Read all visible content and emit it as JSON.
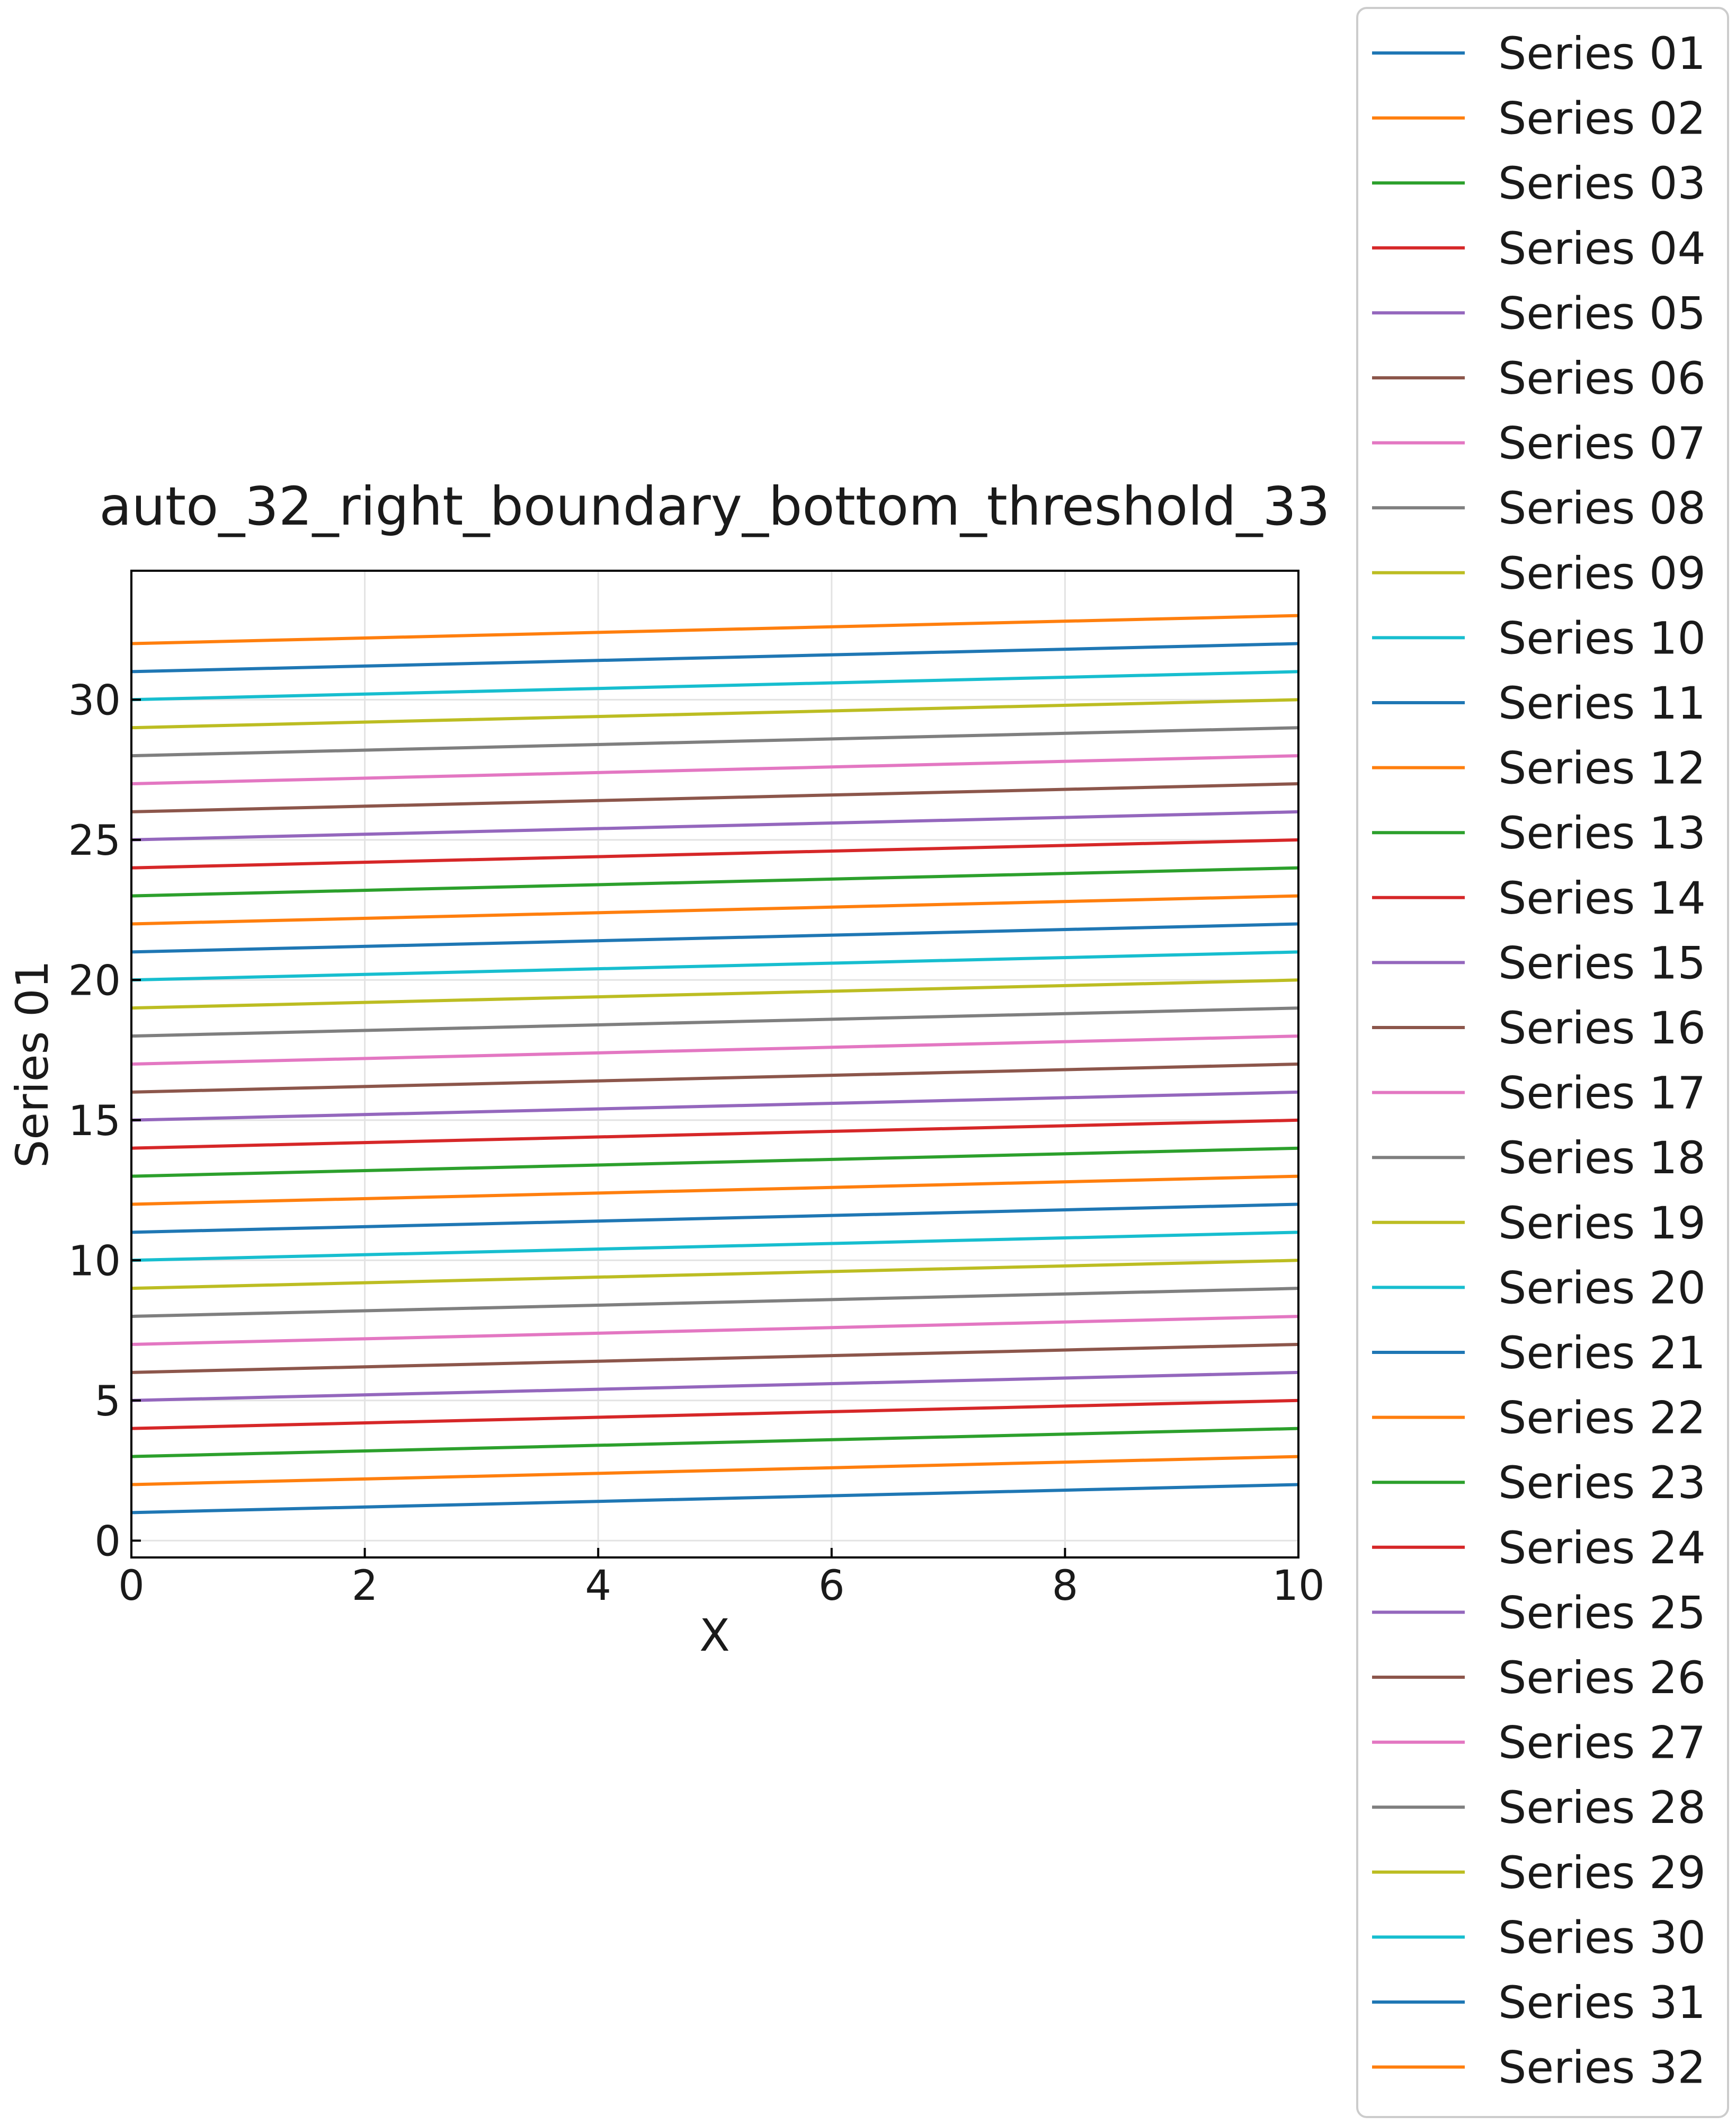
{
  "chart_data": {
    "type": "line",
    "title": "auto_32_right_boundary_bottom_threshold_33",
    "xlabel": "X",
    "ylabel": "Series 01",
    "xlim": [
      0,
      10
    ],
    "ylim": [
      -0.6,
      34.6
    ],
    "xticks": [
      0,
      2,
      4,
      6,
      8,
      10
    ],
    "yticks": [
      0,
      5,
      10,
      15,
      20,
      25,
      30
    ],
    "grid": true,
    "legend_position": "outside right",
    "x": [
      0,
      10
    ],
    "series": [
      {
        "name": "Series 01",
        "color": "#1f77b4",
        "values": [
          1,
          2
        ]
      },
      {
        "name": "Series 02",
        "color": "#ff7f0e",
        "values": [
          2,
          3
        ]
      },
      {
        "name": "Series 03",
        "color": "#2ca02c",
        "values": [
          3,
          4
        ]
      },
      {
        "name": "Series 04",
        "color": "#d62728",
        "values": [
          4,
          5
        ]
      },
      {
        "name": "Series 05",
        "color": "#9467bd",
        "values": [
          5,
          6
        ]
      },
      {
        "name": "Series 06",
        "color": "#8c564b",
        "values": [
          6,
          7
        ]
      },
      {
        "name": "Series 07",
        "color": "#e377c2",
        "values": [
          7,
          8
        ]
      },
      {
        "name": "Series 08",
        "color": "#7f7f7f",
        "values": [
          8,
          9
        ]
      },
      {
        "name": "Series 09",
        "color": "#bcbd22",
        "values": [
          9,
          10
        ]
      },
      {
        "name": "Series 10",
        "color": "#17becf",
        "values": [
          10,
          11
        ]
      },
      {
        "name": "Series 11",
        "color": "#1f77b4",
        "values": [
          11,
          12
        ]
      },
      {
        "name": "Series 12",
        "color": "#ff7f0e",
        "values": [
          12,
          13
        ]
      },
      {
        "name": "Series 13",
        "color": "#2ca02c",
        "values": [
          13,
          14
        ]
      },
      {
        "name": "Series 14",
        "color": "#d62728",
        "values": [
          14,
          15
        ]
      },
      {
        "name": "Series 15",
        "color": "#9467bd",
        "values": [
          15,
          16
        ]
      },
      {
        "name": "Series 16",
        "color": "#8c564b",
        "values": [
          16,
          17
        ]
      },
      {
        "name": "Series 17",
        "color": "#e377c2",
        "values": [
          17,
          18
        ]
      },
      {
        "name": "Series 18",
        "color": "#7f7f7f",
        "values": [
          18,
          19
        ]
      },
      {
        "name": "Series 19",
        "color": "#bcbd22",
        "values": [
          19,
          20
        ]
      },
      {
        "name": "Series 20",
        "color": "#17becf",
        "values": [
          20,
          21
        ]
      },
      {
        "name": "Series 21",
        "color": "#1f77b4",
        "values": [
          21,
          22
        ]
      },
      {
        "name": "Series 22",
        "color": "#ff7f0e",
        "values": [
          22,
          23
        ]
      },
      {
        "name": "Series 23",
        "color": "#2ca02c",
        "values": [
          23,
          24
        ]
      },
      {
        "name": "Series 24",
        "color": "#d62728",
        "values": [
          24,
          25
        ]
      },
      {
        "name": "Series 25",
        "color": "#9467bd",
        "values": [
          25,
          26
        ]
      },
      {
        "name": "Series 26",
        "color": "#8c564b",
        "values": [
          26,
          27
        ]
      },
      {
        "name": "Series 27",
        "color": "#e377c2",
        "values": [
          27,
          28
        ]
      },
      {
        "name": "Series 28",
        "color": "#7f7f7f",
        "values": [
          28,
          29
        ]
      },
      {
        "name": "Series 29",
        "color": "#bcbd22",
        "values": [
          29,
          30
        ]
      },
      {
        "name": "Series 30",
        "color": "#17becf",
        "values": [
          30,
          31
        ]
      },
      {
        "name": "Series 31",
        "color": "#1f77b4",
        "values": [
          31,
          32
        ]
      },
      {
        "name": "Series 32",
        "color": "#ff7f0e",
        "values": [
          32,
          33
        ]
      }
    ]
  }
}
